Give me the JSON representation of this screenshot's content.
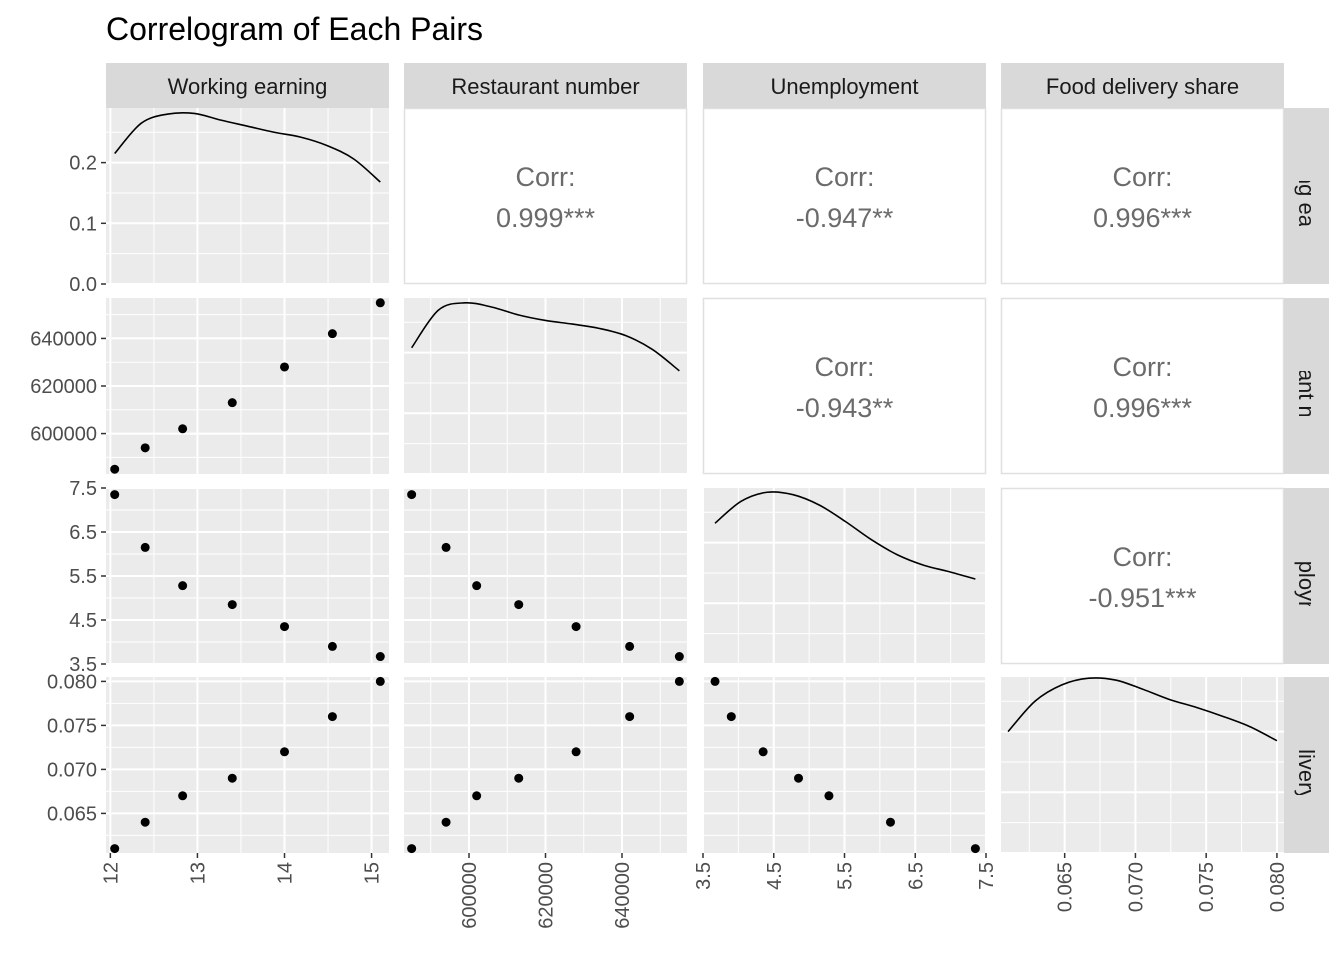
{
  "chart_data": {
    "type": "scatter",
    "title": "Correlogram of Each Pairs",
    "variables": [
      {
        "name": "Working earning",
        "values": [
          12.05,
          12.4,
          12.83,
          13.4,
          14.0,
          14.55,
          15.1
        ],
        "axis_range": [
          11.95,
          15.2
        ],
        "ticks": [
          12,
          13,
          14,
          15
        ],
        "tick_labels": [
          "12",
          "13",
          "14",
          "15"
        ]
      },
      {
        "name": "Restaurant number",
        "values": [
          585000,
          594000,
          602000,
          613000,
          628000,
          642000,
          655000
        ],
        "axis_range": [
          583000,
          657000
        ],
        "ticks": [
          600000,
          620000,
          640000
        ],
        "tick_labels": [
          "600000",
          "620000",
          "640000"
        ]
      },
      {
        "name": "Unemployment",
        "values": [
          7.35,
          6.15,
          5.28,
          4.85,
          4.35,
          3.9,
          3.67
        ],
        "axis_range": [
          3.5,
          7.5
        ],
        "ticks": [
          3.5,
          4.5,
          5.5,
          6.5,
          7.5
        ],
        "tick_labels": [
          "3.5",
          "4.5",
          "5.5",
          "6.5",
          "7.5"
        ]
      },
      {
        "name": "Food delivery share",
        "values": [
          0.061,
          0.064,
          0.067,
          0.069,
          0.072,
          0.076,
          0.08
        ],
        "axis_range": [
          0.0605,
          0.0805
        ],
        "ticks": [
          0.065,
          0.07,
          0.075,
          0.08
        ],
        "tick_labels": [
          "0.065",
          "0.070",
          "0.075",
          "0.080"
        ]
      }
    ],
    "correlations": [
      {
        "row": 0,
        "col": 1,
        "label": "Corr:",
        "value": "0.999***"
      },
      {
        "row": 0,
        "col": 2,
        "label": "Corr:",
        "value": "-0.947**"
      },
      {
        "row": 0,
        "col": 3,
        "label": "Corr:",
        "value": "0.996***"
      },
      {
        "row": 1,
        "col": 2,
        "label": "Corr:",
        "value": "-0.943**"
      },
      {
        "row": 1,
        "col": 3,
        "label": "Corr:",
        "value": "0.996***"
      },
      {
        "row": 2,
        "col": 3,
        "label": "Corr:",
        "value": "-0.951***"
      }
    ],
    "density": {
      "y_range": [
        0,
        0.29
      ],
      "y_ticks": [
        0.0,
        0.1,
        0.2
      ],
      "y_tick_labels": [
        "0.0",
        "0.1",
        "0.2"
      ],
      "curves": [
        [
          0.215,
          0.265,
          0.28,
          0.281,
          0.27,
          0.26,
          0.25,
          0.242,
          0.228,
          0.206,
          0.168
        ],
        [
          0.208,
          0.27,
          0.282,
          0.275,
          0.262,
          0.253,
          0.247,
          0.24,
          0.228,
          0.205,
          0.17
        ],
        [
          0.232,
          0.268,
          0.283,
          0.279,
          0.262,
          0.235,
          0.205,
          0.18,
          0.163,
          0.152,
          0.14
        ],
        [
          0.2,
          0.25,
          0.277,
          0.288,
          0.285,
          0.27,
          0.253,
          0.24,
          0.225,
          0.208,
          0.185
        ]
      ]
    },
    "grid": true,
    "legend": "none"
  }
}
